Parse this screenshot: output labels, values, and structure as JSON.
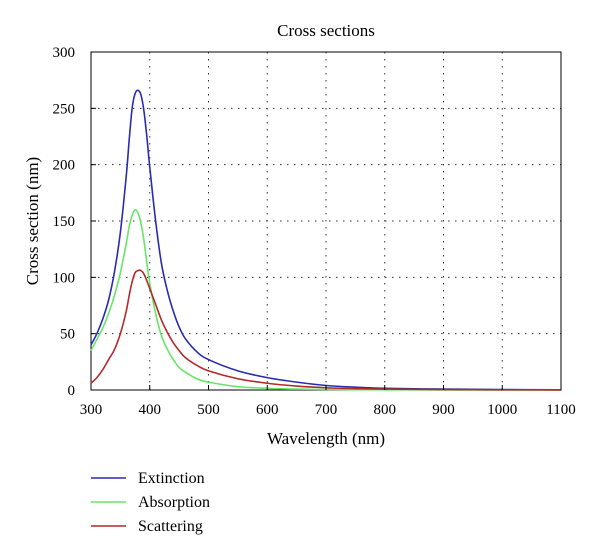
{
  "chart_data": {
    "type": "line",
    "title": "Cross sections",
    "xlabel": "Wavelength (nm)",
    "ylabel": "Cross section (nm)",
    "xlim": [
      300,
      1100
    ],
    "ylim": [
      0,
      300
    ],
    "xticks": [
      300,
      400,
      500,
      600,
      700,
      800,
      900,
      1000,
      1100
    ],
    "yticks": [
      0,
      50,
      100,
      150,
      200,
      250,
      300
    ],
    "grid": true,
    "legend_position": "below",
    "series": [
      {
        "name": "Extinction",
        "color": "#2b2bb0",
        "x": [
          300,
          310,
          320,
          330,
          340,
          350,
          360,
          365,
          370,
          375,
          380,
          385,
          390,
          395,
          400,
          410,
          420,
          430,
          440,
          450,
          460,
          480,
          500,
          550,
          600,
          650,
          700,
          750,
          800,
          900,
          1000,
          1100
        ],
        "y": [
          40,
          50,
          63,
          80,
          105,
          140,
          190,
          222,
          250,
          263,
          266,
          262,
          248,
          225,
          198,
          150,
          112,
          88,
          70,
          56,
          46,
          34,
          27,
          17,
          11,
          7,
          4,
          2.5,
          1.5,
          0.8,
          0.4,
          0.2
        ]
      },
      {
        "name": "Absorption",
        "color": "#66e666",
        "x": [
          300,
          310,
          320,
          330,
          340,
          350,
          360,
          365,
          370,
          375,
          380,
          385,
          390,
          395,
          400,
          410,
          420,
          430,
          440,
          450,
          460,
          480,
          500,
          550,
          600,
          650,
          700,
          750,
          800,
          900,
          1000,
          1100
        ],
        "y": [
          35,
          45,
          55,
          68,
          84,
          104,
          130,
          145,
          155,
          160,
          157,
          148,
          133,
          113,
          95,
          68,
          48,
          36,
          27,
          20,
          16,
          10,
          7,
          3,
          1.5,
          0.8,
          0.5,
          0.3,
          0.2,
          0.1,
          0.05,
          0.02
        ]
      },
      {
        "name": "Scattering",
        "color": "#b22a2a",
        "x": [
          300,
          310,
          320,
          330,
          340,
          350,
          360,
          365,
          370,
          375,
          380,
          385,
          390,
          395,
          400,
          410,
          420,
          430,
          440,
          450,
          460,
          480,
          500,
          550,
          600,
          650,
          700,
          750,
          800,
          900,
          1000,
          1100
        ],
        "y": [
          6,
          11,
          18,
          27,
          36,
          50,
          70,
          84,
          96,
          104,
          106,
          106,
          103,
          97,
          90,
          76,
          62,
          51,
          42,
          35,
          29,
          22,
          17,
          10,
          6,
          3.5,
          2,
          1.2,
          0.8,
          0.4,
          0.2,
          0.1
        ]
      }
    ]
  }
}
